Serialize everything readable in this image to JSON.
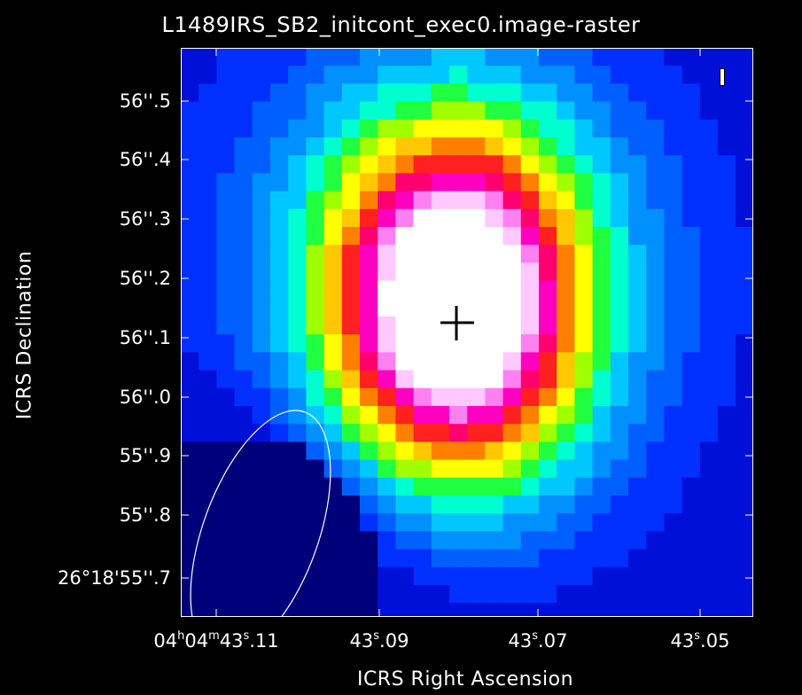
{
  "title": "L1489IRS_SB2_initcont_exec0.image-raster",
  "xlabel": "ICRS Right Ascension",
  "ylabel": "ICRS Declination",
  "yticks": [
    "56''.5",
    "56''.4",
    "56''.3",
    "56''.2",
    "56''.1",
    "56''.0",
    "55''.9",
    "55''.8",
    "26°18'55''.7"
  ],
  "xticks": [
    {
      "h": "04",
      "m": "04",
      "s": "43",
      "f": ".11"
    },
    {
      "s": "43",
      "f": ".09"
    },
    {
      "s": "43",
      "f": ".07"
    },
    {
      "s": "43",
      "f": ".05"
    }
  ],
  "colors": {
    "background": "#000000",
    "text": "#ffffff",
    "colormap": [
      "#00007a",
      "#0010d8",
      "#0030ff",
      "#0060ff",
      "#0090ff",
      "#00c8ff",
      "#00ffd0",
      "#20ff40",
      "#a0ff00",
      "#ffff00",
      "#ffc800",
      "#ff8000",
      "#ff2020",
      "#ff0070",
      "#ff00c0",
      "#ff80f0",
      "#ffc8ff",
      "#ffffff"
    ]
  },
  "annotations": {
    "beam_ellipse": "beam-ellipse",
    "peak_marker": "cross-marker"
  }
}
